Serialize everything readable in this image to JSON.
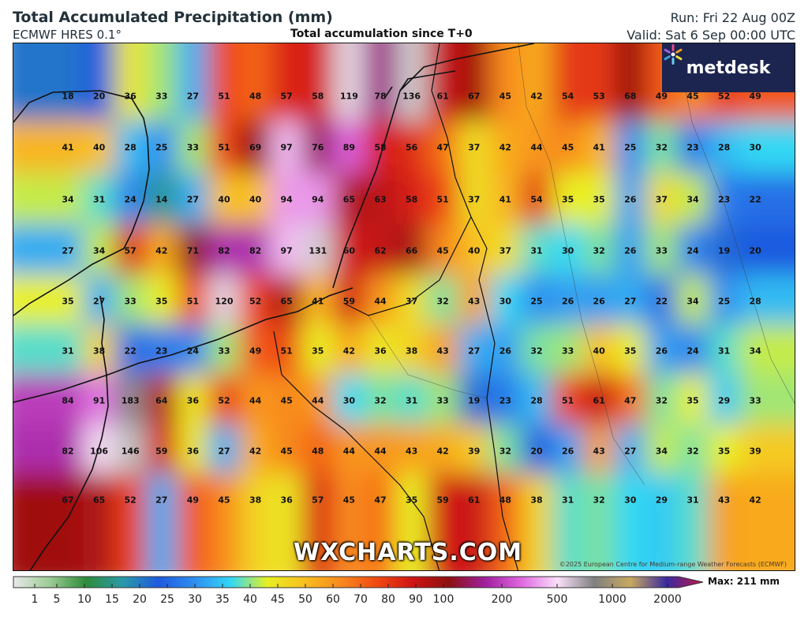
{
  "header": {
    "title": "Total Accumulated Precipitation (mm)",
    "model": "ECMWF HRES 0.1°",
    "subtitle": "Total accumulation since T+0",
    "run": "Run: Fri 22 Aug 00Z",
    "valid": "Valid: Sat 6 Sep 00:00 UTC"
  },
  "logo": {
    "text": "metdesk",
    "icon": "pinwheel-icon",
    "background": "#1c2450"
  },
  "watermark": "WXCHARTS.COM",
  "copyright": "©2025 European Centre for Medium-range Weather Forecasts (ECMWF)",
  "grid_values": [
    [
      18,
      20,
      36,
      33,
      27,
      51,
      48,
      57,
      58,
      119,
      78,
      136,
      61,
      67,
      45,
      42,
      54,
      53,
      68,
      49,
      45,
      52,
      49
    ],
    [
      41,
      40,
      28,
      25,
      33,
      51,
      69,
      97,
      76,
      89,
      58,
      56,
      47,
      37,
      42,
      44,
      45,
      41,
      25,
      32,
      23,
      28,
      30
    ],
    [
      34,
      31,
      24,
      14,
      27,
      40,
      40,
      94,
      94,
      65,
      63,
      58,
      51,
      37,
      41,
      54,
      35,
      35,
      26,
      37,
      34,
      23,
      22
    ],
    [
      27,
      34,
      57,
      42,
      71,
      82,
      82,
      97,
      131,
      60,
      62,
      66,
      45,
      40,
      37,
      31,
      30,
      32,
      26,
      33,
      24,
      19,
      20
    ],
    [
      35,
      27,
      33,
      35,
      51,
      120,
      52,
      65,
      41,
      59,
      44,
      37,
      32,
      43,
      30,
      25,
      26,
      26,
      27,
      22,
      34,
      25,
      28
    ],
    [
      31,
      38,
      22,
      23,
      24,
      33,
      49,
      51,
      35,
      42,
      36,
      38,
      43,
      27,
      26,
      32,
      33,
      40,
      35,
      26,
      24,
      31,
      34
    ],
    [
      84,
      91,
      183,
      64,
      36,
      52,
      44,
      45,
      44,
      30,
      32,
      31,
      33,
      19,
      23,
      28,
      51,
      61,
      47,
      32,
      35,
      29,
      33
    ],
    [
      82,
      106,
      146,
      59,
      36,
      27,
      42,
      45,
      48,
      44,
      44,
      43,
      42,
      39,
      32,
      20,
      26,
      43,
      27,
      34,
      32,
      35,
      39
    ],
    [
      67,
      65,
      52,
      27,
      49,
      45,
      38,
      36,
      57,
      45,
      47,
      35,
      59,
      61,
      48,
      38,
      31,
      32,
      30,
      29,
      31,
      43,
      42
    ]
  ],
  "colorbar": {
    "ticks": [
      "1",
      "5",
      "10",
      "15",
      "20",
      "25",
      "30",
      "35",
      "40",
      "45",
      "50",
      "60",
      "70",
      "80",
      "90",
      "100",
      "200",
      "500",
      "1000",
      "2000"
    ],
    "max_label": "Max: 211 mm",
    "colors": [
      "#e8e8e8",
      "#9ccc94",
      "#2e8b3a",
      "#2a9aa8",
      "#1e5ae0",
      "#2f8ff0",
      "#33d8f4",
      "#e8f020",
      "#f8c020",
      "#f88a1e",
      "#f04a12",
      "#d01414",
      "#8c1010",
      "#a020a0",
      "#e068e0",
      "#fae0fa",
      "#808080",
      "#c8a860",
      "#3a2aa0",
      "#c01848"
    ]
  }
}
